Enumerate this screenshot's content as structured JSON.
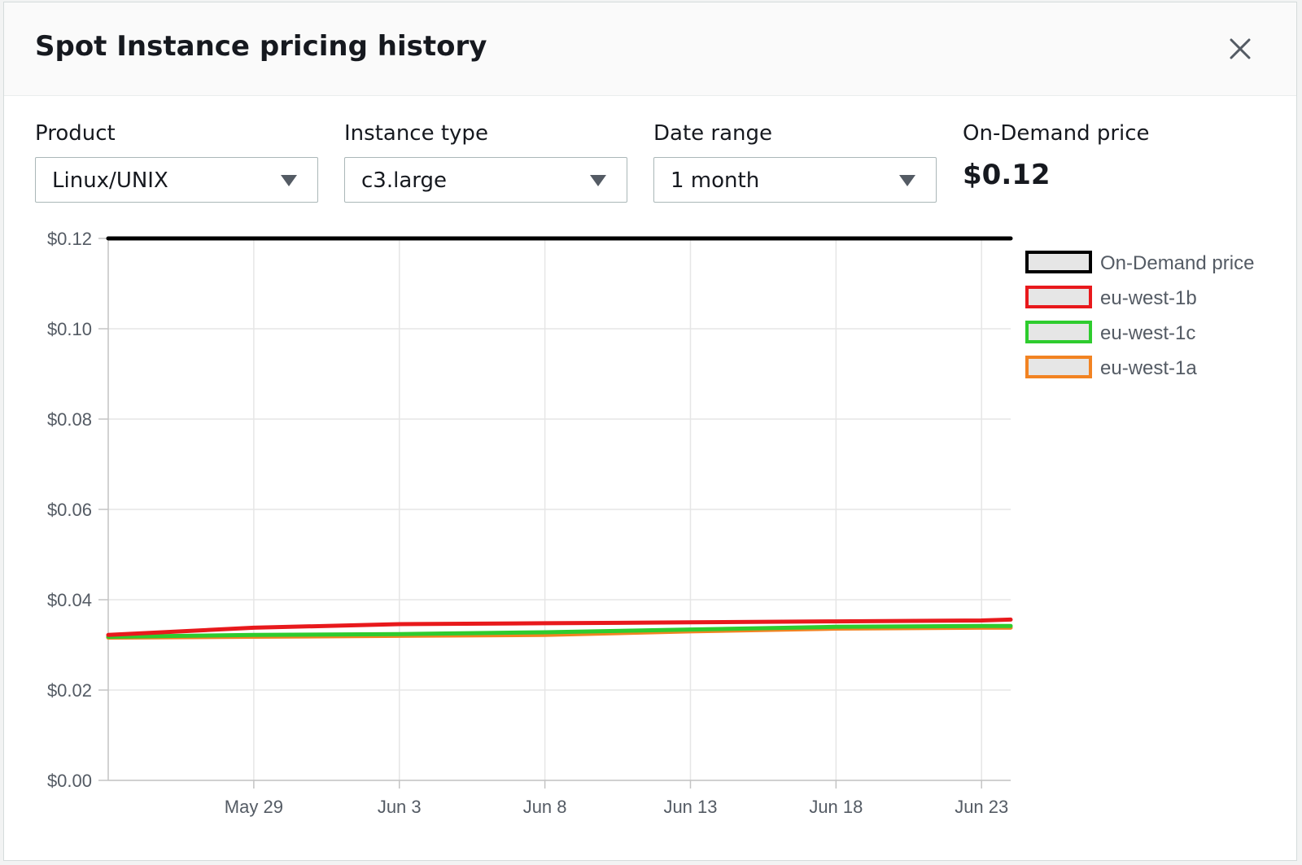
{
  "dialog": {
    "title": "Spot Instance pricing history",
    "close_icon": "close-icon"
  },
  "filters": {
    "product": {
      "label": "Product",
      "value": "Linux/UNIX"
    },
    "instance_type": {
      "label": "Instance type",
      "value": "c3.large"
    },
    "date_range": {
      "label": "Date range",
      "value": "1 month"
    },
    "on_demand": {
      "label": "On-Demand price",
      "value": "$0.12"
    }
  },
  "colors": {
    "on_demand": "#000000",
    "eu_west_1b": "#e8191c",
    "eu_west_1c": "#2ecc2e",
    "eu_west_1a": "#f28322",
    "grid": "#e6e6e6"
  },
  "chart_data": {
    "type": "line",
    "x": [
      "May 24",
      "May 29",
      "Jun 3",
      "Jun 8",
      "Jun 13",
      "Jun 18",
      "Jun 23",
      "Jun 24"
    ],
    "x_ticks": [
      "May 29",
      "Jun 3",
      "Jun 8",
      "Jun 13",
      "Jun 18",
      "Jun 23"
    ],
    "y_ticks": [
      "$0.00",
      "$0.02",
      "$0.04",
      "$0.06",
      "$0.08",
      "$0.10",
      "$0.12"
    ],
    "ylim": [
      0,
      0.12
    ],
    "grid": true,
    "legend_position": "right",
    "series": [
      {
        "name": "On-Demand price",
        "color": "#000000",
        "values": [
          0.12,
          0.12,
          0.12,
          0.12,
          0.12,
          0.12,
          0.12,
          0.12
        ]
      },
      {
        "name": "eu-west-1b",
        "color": "#e8191c",
        "values": [
          0.0322,
          0.0338,
          0.0346,
          0.0348,
          0.035,
          0.0352,
          0.0354,
          0.0356
        ]
      },
      {
        "name": "eu-west-1c",
        "color": "#2ecc2e",
        "values": [
          0.0318,
          0.0322,
          0.0324,
          0.0328,
          0.0334,
          0.034,
          0.0342,
          0.0342
        ]
      },
      {
        "name": "eu-west-1a",
        "color": "#f28322",
        "values": [
          0.0316,
          0.0318,
          0.032,
          0.0322,
          0.033,
          0.0336,
          0.0338,
          0.0338
        ]
      }
    ]
  }
}
